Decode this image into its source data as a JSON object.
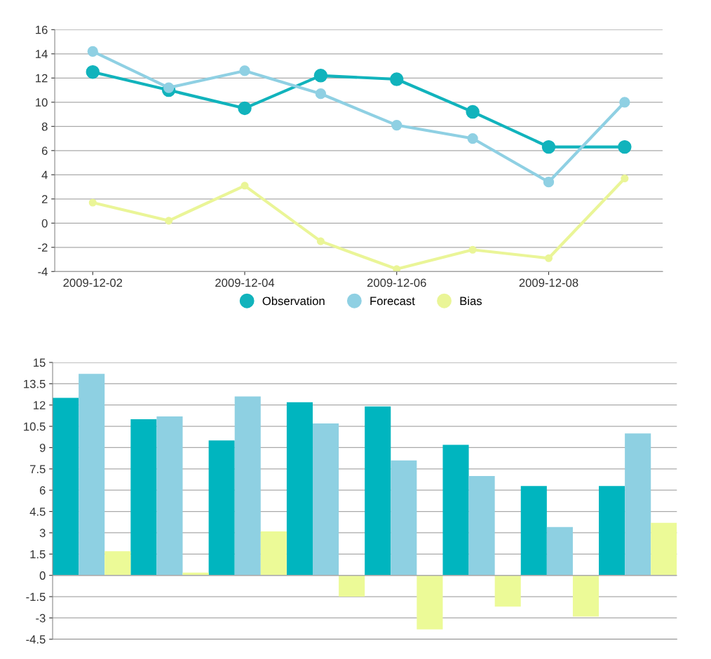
{
  "chart_data": [
    {
      "type": "line",
      "x": [
        "2009-12-02",
        "2009-12-03",
        "2009-12-04",
        "2009-12-05",
        "2009-12-06",
        "2009-12-07",
        "2009-12-08",
        "2009-12-09"
      ],
      "series": [
        {
          "name": "Observation",
          "color": "#11b3bc",
          "values": [
            12.5,
            11.0,
            9.5,
            12.2,
            11.9,
            9.2,
            6.3,
            6.3
          ]
        },
        {
          "name": "Forecast",
          "color": "#8fd0e3",
          "values": [
            14.2,
            11.2,
            12.6,
            10.7,
            8.1,
            7.0,
            3.4,
            10.0
          ]
        },
        {
          "name": "Bias",
          "color": "#eaf597",
          "values": [
            1.7,
            0.2,
            3.1,
            -1.5,
            -3.8,
            -2.2,
            -2.9,
            3.7
          ]
        }
      ],
      "xlim": [
        "2009-12-01T12:00",
        "2009-12-09T12:00"
      ],
      "xticks": [
        "2009-12-02",
        "2009-12-04",
        "2009-12-06",
        "2009-12-08"
      ],
      "ylim": [
        -4,
        16
      ],
      "yticks": [
        -4,
        -2,
        0,
        2,
        4,
        6,
        8,
        10,
        12,
        14,
        16
      ],
      "grid": "y",
      "legend": "bottom",
      "marker": "circle",
      "line_style": "solid"
    },
    {
      "type": "bar",
      "categories": [
        null,
        null,
        null,
        null,
        null,
        null,
        null,
        null
      ],
      "series": [
        {
          "color": "#00b5bf",
          "values": [
            12.5,
            11.0,
            9.5,
            12.2,
            11.9,
            9.2,
            6.3,
            6.3
          ]
        },
        {
          "color": "#8ed0e2",
          "values": [
            14.2,
            11.2,
            12.6,
            10.7,
            8.1,
            7.0,
            3.4,
            10.0
          ]
        },
        {
          "color": "#ecfa97",
          "values": [
            1.7,
            0.2,
            3.1,
            -1.5,
            -3.8,
            -2.2,
            -2.9,
            3.7
          ]
        }
      ],
      "ylim": [
        -4.5,
        15
      ],
      "yticks": [
        -4.5,
        -3,
        -1.5,
        0,
        1.5,
        3,
        4.5,
        6,
        7.5,
        9,
        10.5,
        12,
        13.5,
        15
      ],
      "grid": "y"
    }
  ]
}
